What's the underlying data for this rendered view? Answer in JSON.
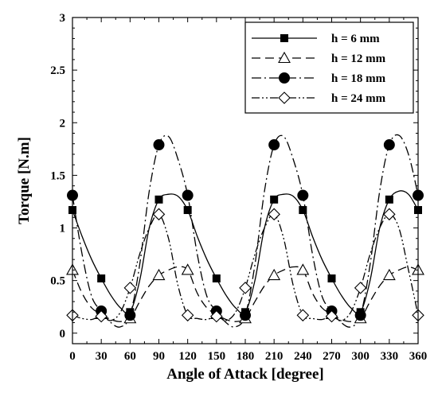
{
  "chart_data": {
    "type": "line",
    "xlabel": "Angle of Attack [degree]",
    "ylabel": "Torque [N.m]",
    "xlim": [
      0,
      360
    ],
    "ylim": [
      -0.1,
      3
    ],
    "xticks": [
      0,
      30,
      60,
      90,
      120,
      150,
      180,
      210,
      240,
      270,
      300,
      330,
      360
    ],
    "yticks": [
      0,
      0.5,
      1,
      1.5,
      2,
      2.5,
      3
    ],
    "ytick_labels": [
      "0",
      "0.5",
      "1",
      "1.5",
      "2",
      "2.5",
      "3"
    ],
    "grid": false,
    "legend_position": "top-right",
    "series": [
      {
        "name": "h = 6 mm",
        "marker": "square-filled",
        "dash": "solid",
        "marker_x": [
          0,
          30,
          60,
          90,
          120,
          150,
          180,
          210,
          240,
          270,
          300,
          330,
          360
        ],
        "marker_y": [
          1.17,
          0.52,
          0.2,
          1.27,
          1.17,
          0.52,
          0.2,
          1.27,
          1.17,
          0.52,
          0.2,
          1.27,
          1.17
        ],
        "x": [
          0,
          10,
          20,
          30,
          40,
          50,
          60,
          70,
          80,
          90,
          100,
          110,
          120,
          130,
          140,
          150,
          160,
          170,
          180,
          190,
          200,
          210,
          220,
          230,
          240,
          250,
          260,
          270,
          280,
          290,
          300,
          310,
          320,
          330,
          340,
          350,
          360
        ],
        "y": [
          1.17,
          0.92,
          0.7,
          0.52,
          0.36,
          0.24,
          0.2,
          0.5,
          1.0,
          1.27,
          1.32,
          1.3,
          1.17,
          0.92,
          0.7,
          0.52,
          0.36,
          0.24,
          0.2,
          0.5,
          1.0,
          1.27,
          1.32,
          1.3,
          1.17,
          0.92,
          0.7,
          0.52,
          0.36,
          0.24,
          0.2,
          0.5,
          1.0,
          1.27,
          1.35,
          1.32,
          1.17
        ]
      },
      {
        "name": "h = 12 mm",
        "marker": "triangle-open",
        "dash": "long-dash",
        "marker_x": [
          0,
          30,
          60,
          90,
          120,
          150,
          180,
          210,
          240,
          270,
          300,
          330,
          360
        ],
        "marker_y": [
          0.6,
          0.18,
          0.14,
          0.55,
          0.6,
          0.18,
          0.14,
          0.55,
          0.6,
          0.18,
          0.14,
          0.55,
          0.6
        ],
        "x": [
          0,
          10,
          20,
          30,
          40,
          50,
          60,
          70,
          80,
          90,
          100,
          110,
          120,
          130,
          140,
          150,
          160,
          170,
          180,
          190,
          200,
          210,
          220,
          230,
          240,
          250,
          260,
          270,
          280,
          290,
          300,
          310,
          320,
          330,
          340,
          350,
          360
        ],
        "y": [
          0.6,
          0.38,
          0.24,
          0.18,
          0.13,
          0.11,
          0.14,
          0.3,
          0.45,
          0.55,
          0.6,
          0.63,
          0.6,
          0.38,
          0.24,
          0.18,
          0.13,
          0.11,
          0.14,
          0.3,
          0.45,
          0.55,
          0.6,
          0.63,
          0.6,
          0.38,
          0.24,
          0.18,
          0.13,
          0.11,
          0.14,
          0.3,
          0.45,
          0.55,
          0.6,
          0.63,
          0.6
        ]
      },
      {
        "name": "h = 18 mm",
        "marker": "circle-filled",
        "dash": "dash-dot",
        "marker_x": [
          0,
          30,
          60,
          90,
          120,
          150,
          180,
          210,
          240,
          270,
          300,
          330,
          360
        ],
        "marker_y": [
          1.31,
          0.21,
          0.17,
          1.79,
          1.31,
          0.21,
          0.17,
          1.79,
          1.31,
          0.21,
          0.17,
          1.79,
          1.31
        ],
        "x": [
          0,
          10,
          20,
          30,
          40,
          50,
          60,
          70,
          80,
          90,
          100,
          110,
          120,
          130,
          140,
          150,
          160,
          170,
          180,
          190,
          200,
          210,
          220,
          230,
          240,
          250,
          260,
          270,
          280,
          290,
          300,
          310,
          320,
          330,
          340,
          350,
          360
        ],
        "y": [
          1.31,
          0.75,
          0.35,
          0.21,
          0.1,
          0.06,
          0.17,
          0.65,
          1.35,
          1.79,
          1.87,
          1.65,
          1.31,
          0.75,
          0.35,
          0.21,
          0.1,
          0.06,
          0.17,
          0.65,
          1.35,
          1.79,
          1.87,
          1.65,
          1.31,
          0.75,
          0.35,
          0.21,
          0.1,
          0.06,
          0.17,
          0.65,
          1.35,
          1.79,
          1.88,
          1.7,
          1.31
        ]
      },
      {
        "name": "h = 24 mm",
        "marker": "diamond-open",
        "dash": "dash-dot-dot",
        "marker_x": [
          0,
          30,
          60,
          90,
          120,
          150,
          180,
          210,
          240,
          270,
          300,
          330,
          360
        ],
        "marker_y": [
          0.17,
          0.16,
          0.43,
          1.13,
          0.17,
          0.16,
          0.43,
          1.13,
          0.17,
          0.16,
          0.43,
          1.13,
          0.17
        ],
        "x": [
          0,
          10,
          20,
          30,
          40,
          50,
          60,
          70,
          80,
          90,
          100,
          110,
          120,
          130,
          140,
          150,
          160,
          170,
          180,
          190,
          200,
          210,
          220,
          230,
          240,
          250,
          260,
          270,
          280,
          290,
          300,
          310,
          320,
          330,
          340,
          350,
          360
        ],
        "y": [
          0.17,
          0.14,
          0.13,
          0.16,
          0.12,
          0.2,
          0.43,
          0.75,
          1.0,
          1.13,
          0.9,
          0.45,
          0.17,
          0.14,
          0.13,
          0.16,
          0.12,
          0.2,
          0.43,
          0.75,
          1.0,
          1.13,
          0.9,
          0.45,
          0.17,
          0.14,
          0.13,
          0.16,
          0.12,
          0.2,
          0.43,
          0.75,
          1.0,
          1.13,
          1.0,
          0.6,
          0.17
        ]
      }
    ]
  }
}
